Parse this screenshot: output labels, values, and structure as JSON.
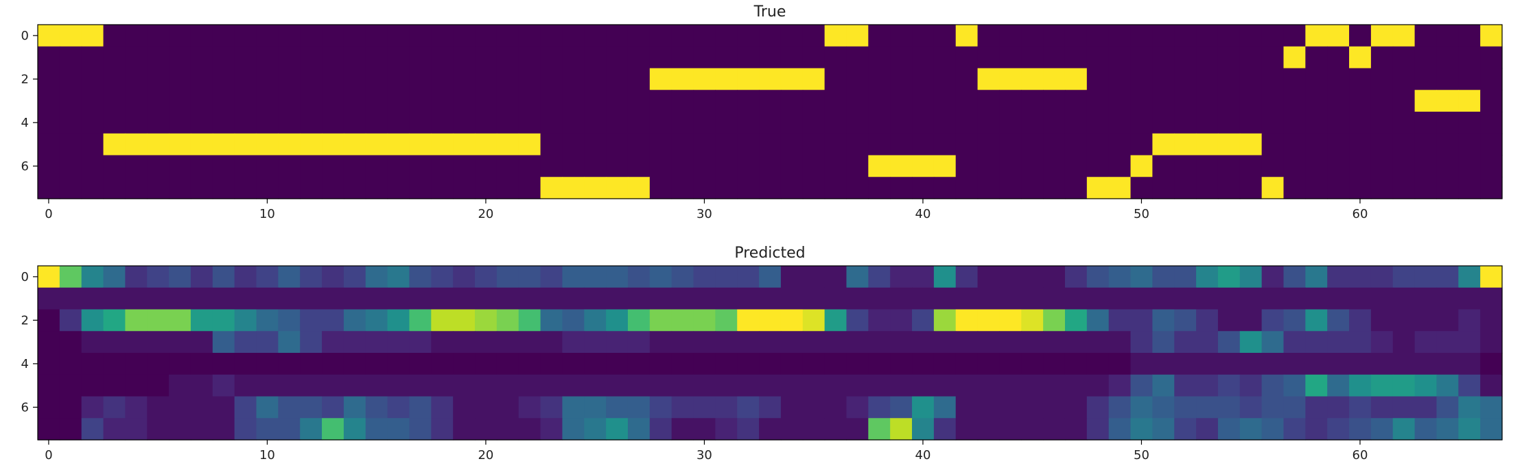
{
  "figure": {
    "panels": [
      "True",
      "Predicted"
    ]
  },
  "colormap": {
    "name": "viridis",
    "low": "#440154",
    "high": "#fde725"
  },
  "chart_data": [
    {
      "type": "heatmap",
      "title": "True",
      "n_cols": 67,
      "n_rows": 8,
      "xlim": [
        -0.5,
        66.5
      ],
      "ylim": [
        7.5,
        -0.5
      ],
      "xticks": [
        0,
        10,
        20,
        30,
        40,
        50,
        60
      ],
      "yticks": [
        0,
        2,
        4,
        6
      ],
      "xlabel": "",
      "ylabel": "",
      "background_value": 0,
      "cells_value_1": [
        {
          "row": 0,
          "cols": [
            0,
            1,
            2
          ]
        },
        {
          "row": 0,
          "cols": [
            36,
            37
          ]
        },
        {
          "row": 0,
          "cols": [
            42
          ]
        },
        {
          "row": 0,
          "cols": [
            58,
            59
          ]
        },
        {
          "row": 0,
          "cols": [
            61,
            62
          ]
        },
        {
          "row": 0,
          "cols": [
            66
          ]
        },
        {
          "row": 1,
          "cols": [
            57
          ]
        },
        {
          "row": 1,
          "cols": [
            60
          ]
        },
        {
          "row": 2,
          "cols": [
            28,
            29,
            30,
            31,
            32,
            33,
            34,
            35
          ]
        },
        {
          "row": 2,
          "cols": [
            43,
            44,
            45,
            46,
            47
          ]
        },
        {
          "row": 3,
          "cols": [
            63,
            64,
            65
          ]
        },
        {
          "row": 5,
          "cols": [
            3,
            4,
            5,
            6,
            7,
            8,
            9,
            10,
            11,
            12,
            13,
            14,
            15,
            16,
            17,
            18,
            19,
            20,
            21,
            22
          ]
        },
        {
          "row": 5,
          "cols": [
            51,
            52,
            53,
            54,
            55
          ]
        },
        {
          "row": 6,
          "cols": [
            38,
            39,
            40,
            41
          ]
        },
        {
          "row": 6,
          "cols": [
            50
          ]
        },
        {
          "row": 7,
          "cols": [
            23,
            24,
            25,
            26,
            27
          ]
        },
        {
          "row": 7,
          "cols": [
            48,
            49
          ]
        },
        {
          "row": 7,
          "cols": [
            56
          ]
        }
      ]
    },
    {
      "type": "heatmap",
      "title": "Predicted",
      "n_cols": 67,
      "n_rows": 8,
      "xlim": [
        -0.5,
        66.5
      ],
      "ylim": [
        7.5,
        -0.5
      ],
      "xticks": [
        0,
        10,
        20,
        30,
        40,
        50,
        60
      ],
      "yticks": [
        0,
        2,
        4,
        6
      ],
      "xlabel": "",
      "ylabel": "",
      "values": [
        [
          1.0,
          0.75,
          0.45,
          0.35,
          0.15,
          0.2,
          0.25,
          0.15,
          0.25,
          0.15,
          0.2,
          0.3,
          0.2,
          0.15,
          0.2,
          0.35,
          0.4,
          0.25,
          0.2,
          0.15,
          0.2,
          0.25,
          0.25,
          0.2,
          0.3,
          0.3,
          0.3,
          0.25,
          0.3,
          0.25,
          0.2,
          0.2,
          0.2,
          0.3,
          0.05,
          0.05,
          0.05,
          0.35,
          0.2,
          0.1,
          0.1,
          0.5,
          0.15,
          0.05,
          0.05,
          0.05,
          0.05,
          0.15,
          0.25,
          0.3,
          0.35,
          0.25,
          0.25,
          0.45,
          0.55,
          0.45,
          0.1,
          0.25,
          0.4,
          0.15,
          0.15,
          0.15,
          0.2,
          0.2,
          0.2,
          0.45,
          1.0
        ],
        [
          0.05,
          0.05,
          0.05,
          0.05,
          0.05,
          0.05,
          0.05,
          0.05,
          0.05,
          0.05,
          0.05,
          0.05,
          0.05,
          0.05,
          0.05,
          0.05,
          0.05,
          0.05,
          0.05,
          0.05,
          0.05,
          0.05,
          0.05,
          0.05,
          0.05,
          0.05,
          0.05,
          0.05,
          0.05,
          0.05,
          0.05,
          0.05,
          0.05,
          0.05,
          0.05,
          0.05,
          0.05,
          0.05,
          0.05,
          0.05,
          0.05,
          0.05,
          0.05,
          0.05,
          0.05,
          0.05,
          0.05,
          0.05,
          0.05,
          0.05,
          0.05,
          0.05,
          0.05,
          0.05,
          0.05,
          0.05,
          0.05,
          0.05,
          0.05,
          0.05,
          0.05,
          0.05,
          0.05,
          0.05,
          0.05,
          0.05,
          0.05
        ],
        [
          0.0,
          0.15,
          0.5,
          0.6,
          0.8,
          0.8,
          0.8,
          0.55,
          0.55,
          0.45,
          0.35,
          0.3,
          0.2,
          0.2,
          0.35,
          0.4,
          0.5,
          0.7,
          0.9,
          0.9,
          0.85,
          0.8,
          0.7,
          0.35,
          0.3,
          0.4,
          0.5,
          0.7,
          0.8,
          0.8,
          0.8,
          0.75,
          1.0,
          1.0,
          1.0,
          0.95,
          0.55,
          0.2,
          0.1,
          0.1,
          0.2,
          0.85,
          1.0,
          1.0,
          1.0,
          0.95,
          0.8,
          0.6,
          0.35,
          0.15,
          0.15,
          0.3,
          0.25,
          0.15,
          0.05,
          0.05,
          0.2,
          0.25,
          0.5,
          0.25,
          0.15,
          0.05,
          0.05,
          0.05,
          0.05,
          0.1,
          0.05
        ],
        [
          0.0,
          0.0,
          0.05,
          0.05,
          0.05,
          0.05,
          0.05,
          0.05,
          0.3,
          0.2,
          0.2,
          0.35,
          0.2,
          0.1,
          0.1,
          0.1,
          0.1,
          0.1,
          0.05,
          0.05,
          0.05,
          0.05,
          0.05,
          0.05,
          0.1,
          0.1,
          0.1,
          0.1,
          0.05,
          0.05,
          0.05,
          0.05,
          0.05,
          0.05,
          0.05,
          0.05,
          0.05,
          0.05,
          0.05,
          0.05,
          0.05,
          0.05,
          0.05,
          0.05,
          0.05,
          0.05,
          0.05,
          0.05,
          0.05,
          0.05,
          0.15,
          0.25,
          0.15,
          0.15,
          0.25,
          0.5,
          0.35,
          0.15,
          0.15,
          0.15,
          0.15,
          0.1,
          0.05,
          0.1,
          0.1,
          0.1,
          0.05
        ],
        [
          0.0,
          0.0,
          0.0,
          0.0,
          0.0,
          0.0,
          0.0,
          0.0,
          0.0,
          0.0,
          0.0,
          0.0,
          0.0,
          0.0,
          0.0,
          0.0,
          0.0,
          0.0,
          0.0,
          0.0,
          0.0,
          0.0,
          0.0,
          0.0,
          0.0,
          0.0,
          0.0,
          0.0,
          0.0,
          0.0,
          0.0,
          0.0,
          0.0,
          0.0,
          0.0,
          0.0,
          0.0,
          0.0,
          0.0,
          0.0,
          0.0,
          0.0,
          0.0,
          0.0,
          0.0,
          0.0,
          0.0,
          0.0,
          0.0,
          0.0,
          0.05,
          0.05,
          0.05,
          0.05,
          0.05,
          0.05,
          0.05,
          0.05,
          0.05,
          0.05,
          0.05,
          0.05,
          0.05,
          0.05,
          0.05,
          0.05,
          0.0
        ],
        [
          0.0,
          0.0,
          0.0,
          0.0,
          0.0,
          0.0,
          0.05,
          0.05,
          0.1,
          0.05,
          0.05,
          0.05,
          0.05,
          0.05,
          0.05,
          0.05,
          0.05,
          0.05,
          0.05,
          0.05,
          0.05,
          0.05,
          0.05,
          0.05,
          0.05,
          0.05,
          0.05,
          0.05,
          0.05,
          0.05,
          0.05,
          0.05,
          0.05,
          0.05,
          0.05,
          0.05,
          0.05,
          0.05,
          0.05,
          0.05,
          0.05,
          0.05,
          0.05,
          0.05,
          0.05,
          0.05,
          0.05,
          0.05,
          0.05,
          0.1,
          0.25,
          0.35,
          0.15,
          0.15,
          0.2,
          0.15,
          0.25,
          0.3,
          0.6,
          0.35,
          0.5,
          0.55,
          0.55,
          0.5,
          0.4,
          0.2,
          0.05
        ],
        [
          0.0,
          0.0,
          0.1,
          0.15,
          0.1,
          0.05,
          0.05,
          0.05,
          0.05,
          0.2,
          0.35,
          0.25,
          0.25,
          0.2,
          0.35,
          0.25,
          0.2,
          0.25,
          0.15,
          0.05,
          0.05,
          0.05,
          0.1,
          0.15,
          0.35,
          0.35,
          0.3,
          0.3,
          0.2,
          0.15,
          0.15,
          0.15,
          0.2,
          0.15,
          0.05,
          0.05,
          0.05,
          0.1,
          0.2,
          0.25,
          0.5,
          0.35,
          0.05,
          0.05,
          0.05,
          0.05,
          0.05,
          0.05,
          0.15,
          0.25,
          0.35,
          0.3,
          0.25,
          0.25,
          0.25,
          0.2,
          0.25,
          0.25,
          0.15,
          0.15,
          0.2,
          0.15,
          0.15,
          0.15,
          0.25,
          0.4,
          0.35
        ],
        [
          0.0,
          0.0,
          0.2,
          0.1,
          0.1,
          0.05,
          0.05,
          0.05,
          0.05,
          0.2,
          0.25,
          0.25,
          0.4,
          0.7,
          0.45,
          0.3,
          0.3,
          0.25,
          0.15,
          0.05,
          0.05,
          0.05,
          0.05,
          0.1,
          0.35,
          0.4,
          0.5,
          0.35,
          0.15,
          0.05,
          0.05,
          0.1,
          0.15,
          0.05,
          0.05,
          0.05,
          0.05,
          0.05,
          0.75,
          0.9,
          0.45,
          0.15,
          0.05,
          0.05,
          0.05,
          0.05,
          0.05,
          0.05,
          0.15,
          0.3,
          0.4,
          0.35,
          0.2,
          0.15,
          0.3,
          0.35,
          0.3,
          0.2,
          0.15,
          0.2,
          0.25,
          0.3,
          0.45,
          0.3,
          0.35,
          0.45,
          0.35
        ]
      ]
    }
  ]
}
